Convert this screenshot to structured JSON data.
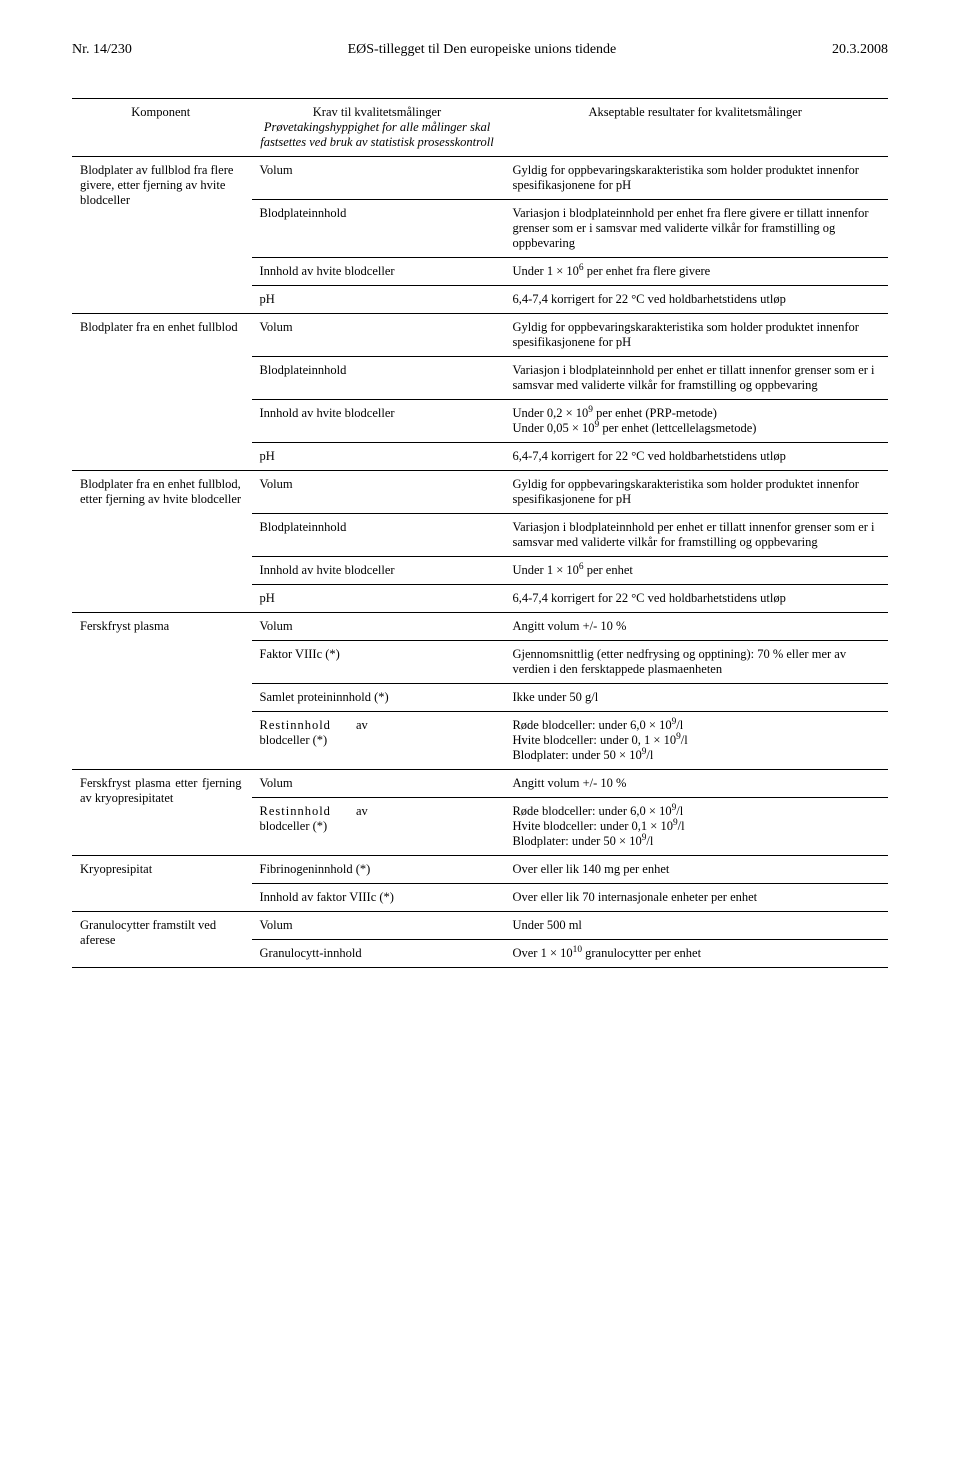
{
  "header": {
    "left": "Nr. 14/230",
    "center": "EØS-tillegget til Den europeiske unions tidende",
    "right": "20.3.2008"
  },
  "table": {
    "head": {
      "component": "Komponent",
      "requirement_title": "Krav til kvalitetsmålinger",
      "requirement_sub": "Prøvetakingshyppighet for alle målinger skal fastsettes ved bruk av statistisk prosesskontroll",
      "acceptable": "Akseptable resultater for kvalitetsmålinger"
    },
    "rows": [
      {
        "c1": "Blodplater av fullblod fra flere givere, etter fjerning av hvite blodceller",
        "c2": "Volum",
        "c3": "Gyldig for oppbevaringskarakteristika som holder produktet innenfor spesifikasjonene for pH",
        "rs": 4
      },
      {
        "c2": "Blodplateinnhold",
        "c3": "Variasjon i blodplateinnhold per enhet fra flere givere er tillatt innenfor grenser som er i samsvar med validerte vilkår for framstilling og oppbevaring"
      },
      {
        "c2": "Innhold av hvite blodceller",
        "c3": "Under 1 × 10⁶ per enhet fra flere givere"
      },
      {
        "c2": "pH",
        "c3": "6,4-7,4 korrigert for 22 °C ved holdbarhetstidens utløp"
      },
      {
        "c1": "Blodplater fra en enhet fullblod",
        "c2": "Volum",
        "c3": "Gyldig for oppbevaringskarakteristika som holder produktet innenfor spesifikasjonene for pH",
        "rs": 4
      },
      {
        "c2": "Blodplateinnhold",
        "c3": "Variasjon i blodplateinnhold per enhet er tillatt innenfor grenser som er i samsvar med validerte vilkår for framstilling og oppbevaring"
      },
      {
        "c2": "Innhold av hvite blodceller",
        "c3": "Under 0,2 × 10⁹ per enhet (PRP-metode)\nUnder 0,05 × 10⁹ per enhet (lettcellelagsmetode)"
      },
      {
        "c2": "pH",
        "c3": "6,4-7,4 korrigert for 22 °C ved holdbarhetstidens utløp"
      },
      {
        "c1": "Blodplater fra en enhet fullblod, etter fjerning av hvite blodceller",
        "c2": "Volum",
        "c3": "Gyldig for oppbevaringskarakteristika som holder produktet innenfor spesifikasjonene for pH",
        "rs": 4
      },
      {
        "c2": "Blodplateinnhold",
        "c3": "Variasjon i blodplateinnhold per enhet er tillatt innenfor grenser som er i samsvar med validerte vilkår for framstilling og oppbevaring"
      },
      {
        "c2": "Innhold av hvite blodceller",
        "c3": "Under 1 × 10⁶ per enhet"
      },
      {
        "c2": "pH",
        "c3": "6,4-7,4 korrigert for 22 °C ved holdbarhetstidens utløp"
      },
      {
        "c1": "Ferskfryst plasma",
        "c2": "Volum",
        "c3": "Angitt volum +/- 10 %",
        "rs": 4
      },
      {
        "c2": "Faktor VIIIc (*)",
        "c3": "Gjennomsnittlig (etter nedfrysing og opptining): 70 % eller mer av verdien i den fersktappede plasmaenheten"
      },
      {
        "c2": "Samlet proteininnhold (*)",
        "c3": "Ikke under 50 g/l"
      },
      {
        "c2": "Restinnhold av blodceller (*)",
        "c3": "Røde blodceller: under 6,0 × 10⁹/l\nHvite blodceller: under 0, 1 × 10⁹/l\nBlodplater: under 50 × 10⁹/l",
        "sp": true
      },
      {
        "c1": "Ferskfryst plasma etter fjerning av kryopresipitatet",
        "c2": "Volum",
        "c3": "Angitt volum +/- 10 %",
        "rs": 2,
        "sp1": true
      },
      {
        "c2": "Restinnhold av blodceller (*)",
        "c3": "Røde blodceller: under 6,0 × 10⁹/l\nHvite blodceller: under 0,1 × 10⁹/l\nBlodplater: under 50 × 10⁹/l",
        "sp": true
      },
      {
        "c1": "Kryopresipitat",
        "c2": "Fibrinogeninnhold (*)",
        "c3": "Over eller lik 140 mg per enhet",
        "rs": 2
      },
      {
        "c2": "Innhold av faktor VIIIc (*)",
        "c3": "Over eller lik 70 internasjonale enheter per enhet"
      },
      {
        "c1": "Granulocytter framstilt ved aferese",
        "c2": "Volum",
        "c3": "Under 500 ml",
        "rs": 2
      },
      {
        "c2": "Granulocytt-innhold",
        "c3": "Over 1 × 10¹⁰ granulocytter per enhet"
      }
    ]
  }
}
